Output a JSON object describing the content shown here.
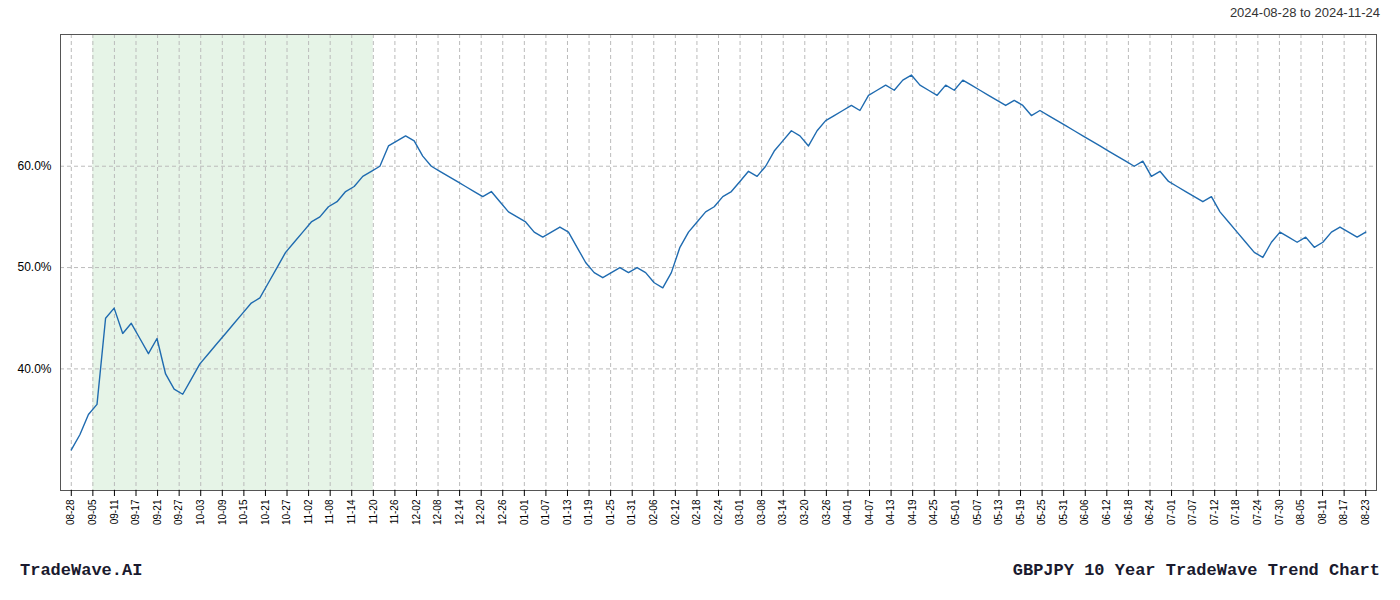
{
  "chart_data": {
    "type": "line",
    "title": "GBPJPY 10 Year TradeWave Trend Chart",
    "subtitle": "2024-08-28 to 2024-11-24",
    "annotations": [
      "TradeWave.AI"
    ],
    "color": "#1f6bb0",
    "grid": true,
    "xlim": [
      -0.5,
      60.5
    ],
    "xticks": [
      {
        "value": 0,
        "label": "08-28"
      },
      {
        "value": 1,
        "label": "09-05"
      },
      {
        "value": 2,
        "label": "09-11"
      },
      {
        "value": 3,
        "label": "09-17"
      },
      {
        "value": 4,
        "label": "09-21"
      },
      {
        "value": 5,
        "label": "09-27"
      },
      {
        "value": 6,
        "label": "10-03"
      },
      {
        "value": 7,
        "label": "10-09"
      },
      {
        "value": 8,
        "label": "10-15"
      },
      {
        "value": 9,
        "label": "10-21"
      },
      {
        "value": 10,
        "label": "10-27"
      },
      {
        "value": 11,
        "label": "11-02"
      },
      {
        "value": 12,
        "label": "11-08"
      },
      {
        "value": 13,
        "label": "11-14"
      },
      {
        "value": 14,
        "label": "11-20"
      },
      {
        "value": 15,
        "label": "11-26"
      },
      {
        "value": 16,
        "label": "12-02"
      },
      {
        "value": 17,
        "label": "12-08"
      },
      {
        "value": 18,
        "label": "12-14"
      },
      {
        "value": 19,
        "label": "12-20"
      },
      {
        "value": 20,
        "label": "12-26"
      },
      {
        "value": 21,
        "label": "01-01"
      },
      {
        "value": 22,
        "label": "01-07"
      },
      {
        "value": 23,
        "label": "01-13"
      },
      {
        "value": 24,
        "label": "01-19"
      },
      {
        "value": 25,
        "label": "01-25"
      },
      {
        "value": 26,
        "label": "01-31"
      },
      {
        "value": 27,
        "label": "02-06"
      },
      {
        "value": 28,
        "label": "02-12"
      },
      {
        "value": 29,
        "label": "02-18"
      },
      {
        "value": 30,
        "label": "02-24"
      },
      {
        "value": 31,
        "label": "03-01"
      },
      {
        "value": 32,
        "label": "03-08"
      },
      {
        "value": 33,
        "label": "03-14"
      },
      {
        "value": 34,
        "label": "03-20"
      },
      {
        "value": 35,
        "label": "03-26"
      },
      {
        "value": 36,
        "label": "04-01"
      },
      {
        "value": 37,
        "label": "04-07"
      },
      {
        "value": 38,
        "label": "04-13"
      },
      {
        "value": 39,
        "label": "04-19"
      },
      {
        "value": 40,
        "label": "04-25"
      },
      {
        "value": 41,
        "label": "05-01"
      },
      {
        "value": 42,
        "label": "05-07"
      },
      {
        "value": 43,
        "label": "05-13"
      },
      {
        "value": 44,
        "label": "05-19"
      },
      {
        "value": 45,
        "label": "05-25"
      },
      {
        "value": 46,
        "label": "05-31"
      },
      {
        "value": 47,
        "label": "06-06"
      },
      {
        "value": 48,
        "label": "06-12"
      },
      {
        "value": 49,
        "label": "06-18"
      },
      {
        "value": 50,
        "label": "06-24"
      },
      {
        "value": 51,
        "label": "07-01"
      },
      {
        "value": 52,
        "label": "07-07"
      },
      {
        "value": 53,
        "label": "07-12"
      },
      {
        "value": 54,
        "label": "07-18"
      },
      {
        "value": 55,
        "label": "07-24"
      },
      {
        "value": 56,
        "label": "07-30"
      },
      {
        "value": 57,
        "label": "08-05"
      },
      {
        "value": 58,
        "label": "08-11"
      },
      {
        "value": 59,
        "label": "08-17"
      },
      {
        "value": 60,
        "label": "08-23"
      }
    ],
    "ylim": [
      28,
      73
    ],
    "yticks": [
      {
        "value": 40,
        "label": "40.0%"
      },
      {
        "value": 50,
        "label": "50.0%"
      },
      {
        "value": 60,
        "label": "60.0%"
      }
    ],
    "shaded_range": {
      "from": 1,
      "to": 14,
      "color": "#c8e6c9"
    },
    "values": [
      32.0,
      33.5,
      35.5,
      36.5,
      45.0,
      46.0,
      43.5,
      44.5,
      43.0,
      41.5,
      43.0,
      39.5,
      38.0,
      37.5,
      39.0,
      40.5,
      41.5,
      42.5,
      43.5,
      44.5,
      45.5,
      46.5,
      47.0,
      48.5,
      50.0,
      51.5,
      52.5,
      53.5,
      54.5,
      55.0,
      56.0,
      56.5,
      57.5,
      58.0,
      59.0,
      59.5,
      60.0,
      62.0,
      62.5,
      63.0,
      62.5,
      61.0,
      60.0,
      59.5,
      59.0,
      58.5,
      58.0,
      57.5,
      57.0,
      57.5,
      56.5,
      55.5,
      55.0,
      54.5,
      53.5,
      53.0,
      53.5,
      54.0,
      53.5,
      52.0,
      50.5,
      49.5,
      49.0,
      49.5,
      50.0,
      49.5,
      50.0,
      49.5,
      48.5,
      48.0,
      49.5,
      52.0,
      53.5,
      54.5,
      55.5,
      56.0,
      57.0,
      57.5,
      58.5,
      59.5,
      59.0,
      60.0,
      61.5,
      62.5,
      63.5,
      63.0,
      62.0,
      63.5,
      64.5,
      65.0,
      65.5,
      66.0,
      65.5,
      67.0,
      67.5,
      68.0,
      67.5,
      68.5,
      69.0,
      68.0,
      67.5,
      67.0,
      68.0,
      67.5,
      68.5,
      68.0,
      67.5,
      67.0,
      66.5,
      66.0,
      66.5,
      66.0,
      65.0,
      65.5,
      65.0,
      64.5,
      64.0,
      63.5,
      63.0,
      62.5,
      62.0,
      61.5,
      61.0,
      60.5,
      60.0,
      60.5,
      59.0,
      59.5,
      58.5,
      58.0,
      57.5,
      57.0,
      56.5,
      57.0,
      55.5,
      54.5,
      53.5,
      52.5,
      51.5,
      51.0,
      52.5,
      53.5,
      53.0,
      52.5,
      53.0,
      52.0,
      52.5,
      53.5,
      54.0,
      53.5,
      53.0,
      53.5
    ]
  }
}
